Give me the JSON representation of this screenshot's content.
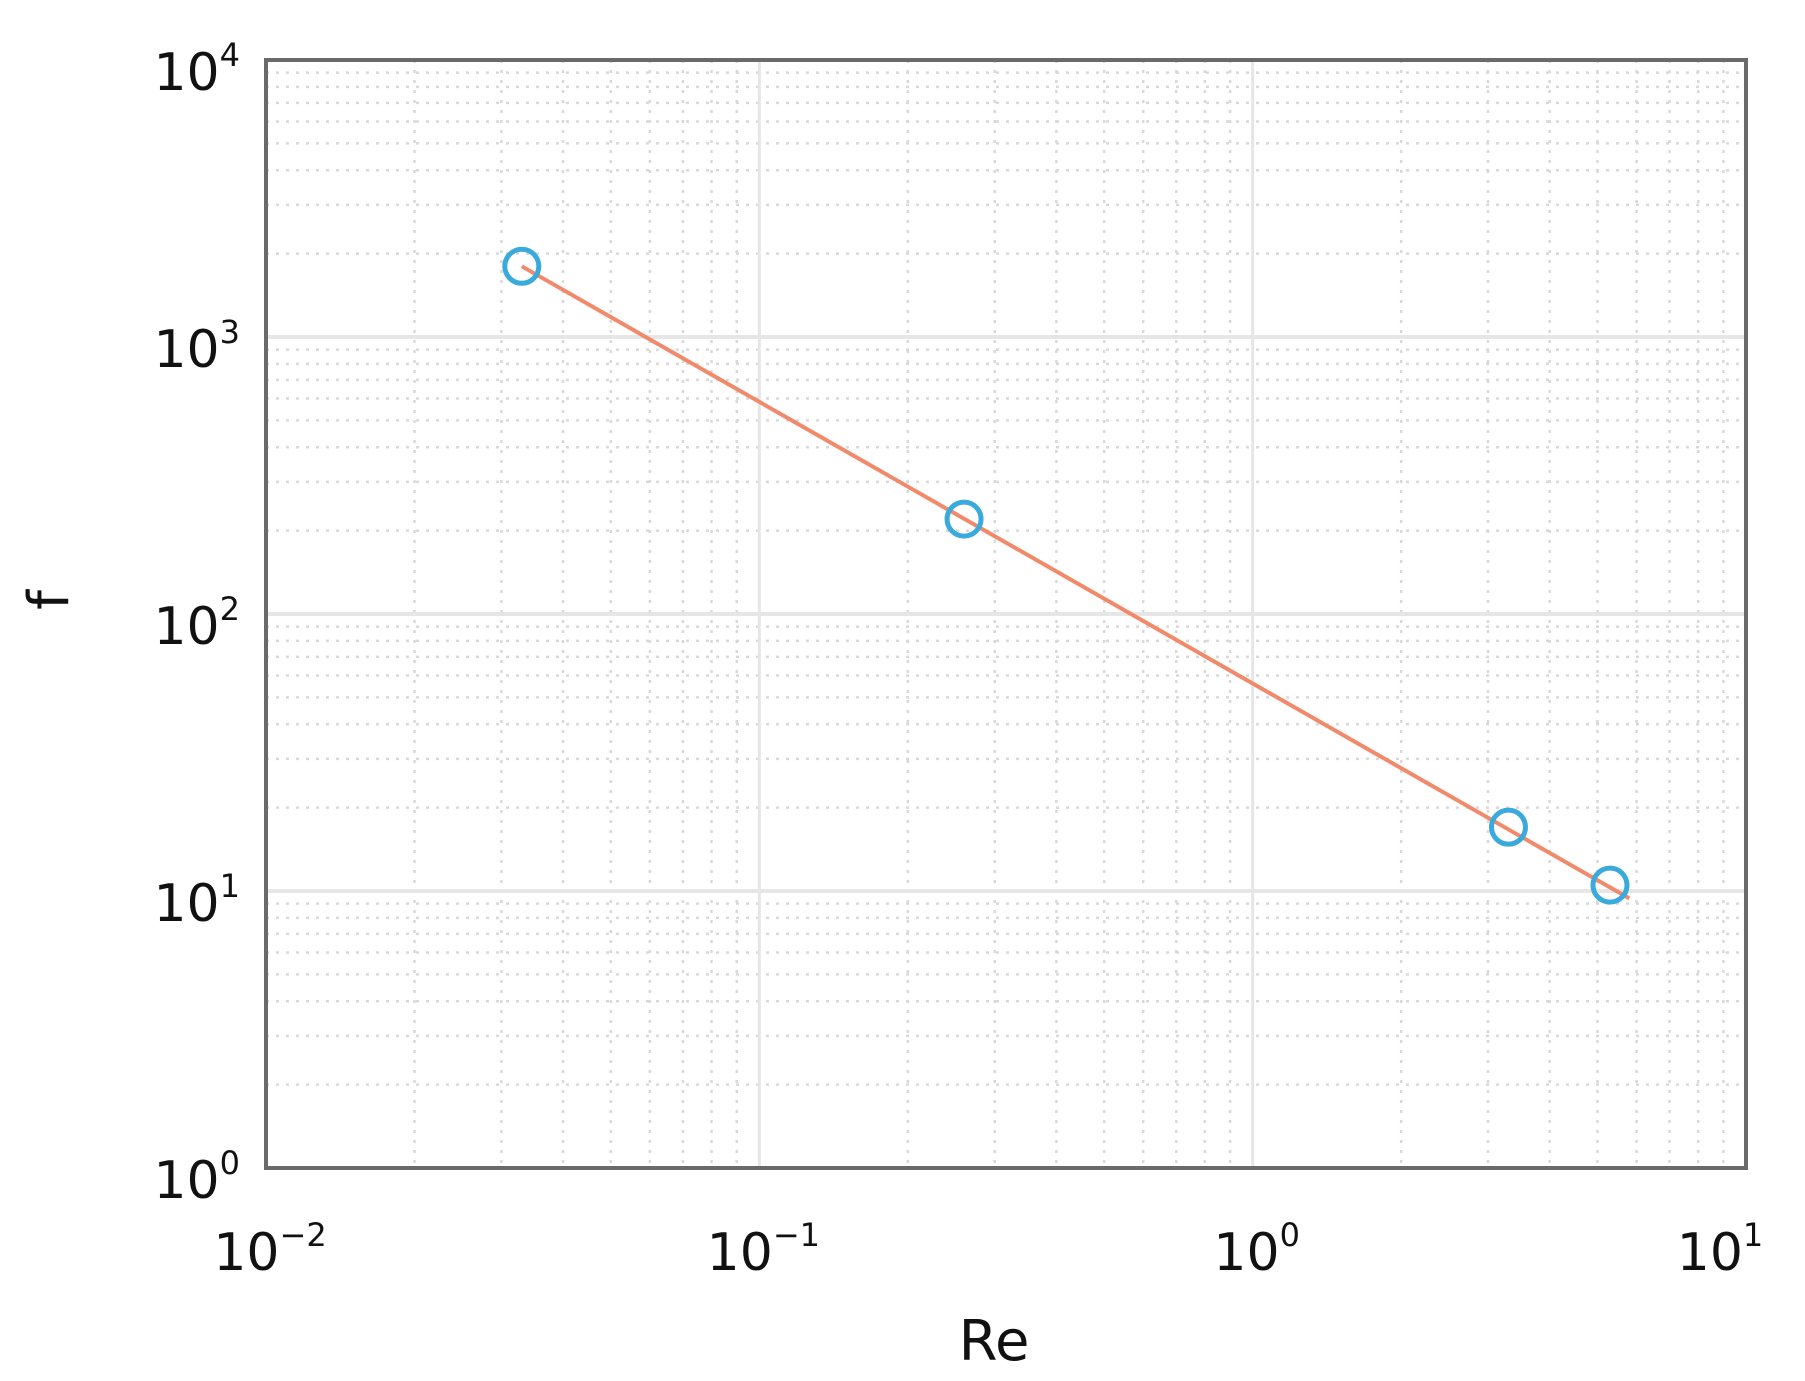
{
  "chart_data": {
    "type": "line",
    "title": "",
    "xlabel": "Re",
    "ylabel": "f",
    "xscale": "log",
    "yscale": "log",
    "xlim": [
      0.01,
      10
    ],
    "ylim": [
      1,
      10000
    ],
    "grid": true,
    "minor_grid": true,
    "legend": "none",
    "x_ticks": [
      {
        "base": "10",
        "exp": "−2"
      },
      {
        "base": "10",
        "exp": "−1"
      },
      {
        "base": "10",
        "exp": "0"
      },
      {
        "base": "10",
        "exp": "1"
      }
    ],
    "y_ticks": [
      {
        "base": "10",
        "exp": "0"
      },
      {
        "base": "10",
        "exp": "1"
      },
      {
        "base": "10",
        "exp": "2"
      },
      {
        "base": "10",
        "exp": "3"
      },
      {
        "base": "10",
        "exp": "4"
      }
    ],
    "series": [
      {
        "style": "markers",
        "marker": "circle-open",
        "color": "#3aa9dc",
        "x": [
          0.033,
          0.26,
          3.3,
          5.3
        ],
        "y": [
          1800,
          220,
          17,
          10.5
        ]
      },
      {
        "style": "line",
        "color": "#f08a6a",
        "x": [
          0.033,
          5.8
        ],
        "y": [
          1800,
          9.4
        ]
      }
    ]
  }
}
